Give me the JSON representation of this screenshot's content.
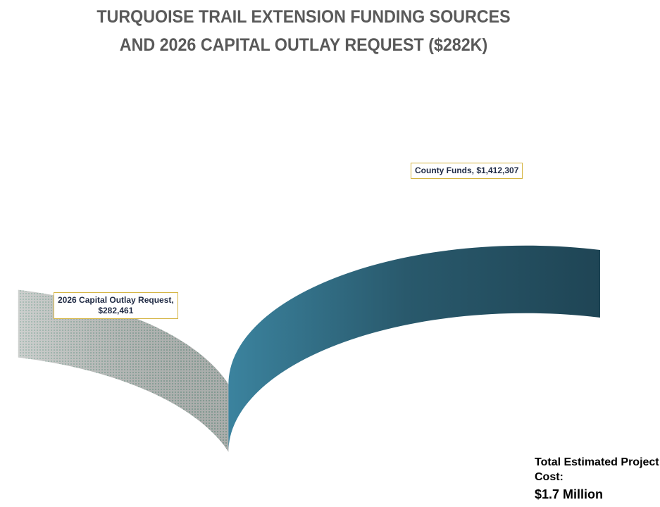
{
  "chart_data": {
    "type": "pie",
    "style": "3d",
    "title_lines": [
      "TURQUOISE TRAIL EXTENSION FUNDING SOURCES",
      "AND 2026 CAPITAL OUTLAY REQUEST ($282K)"
    ],
    "slices": [
      {
        "label": "County Funds, $1,412,307",
        "value": 1412307,
        "color": "#5ec8f0",
        "side_color": "#2a5e72"
      },
      {
        "label": "2026 Capital Outlay Request,\n$282,461",
        "value": 282461,
        "color": "#f4faf6",
        "pattern": "dotted",
        "pattern_color": "#4aa07a"
      }
    ],
    "legend": "none"
  },
  "note": {
    "label": "Total Estimated Project Cost:",
    "value": "$1.7 Million"
  }
}
